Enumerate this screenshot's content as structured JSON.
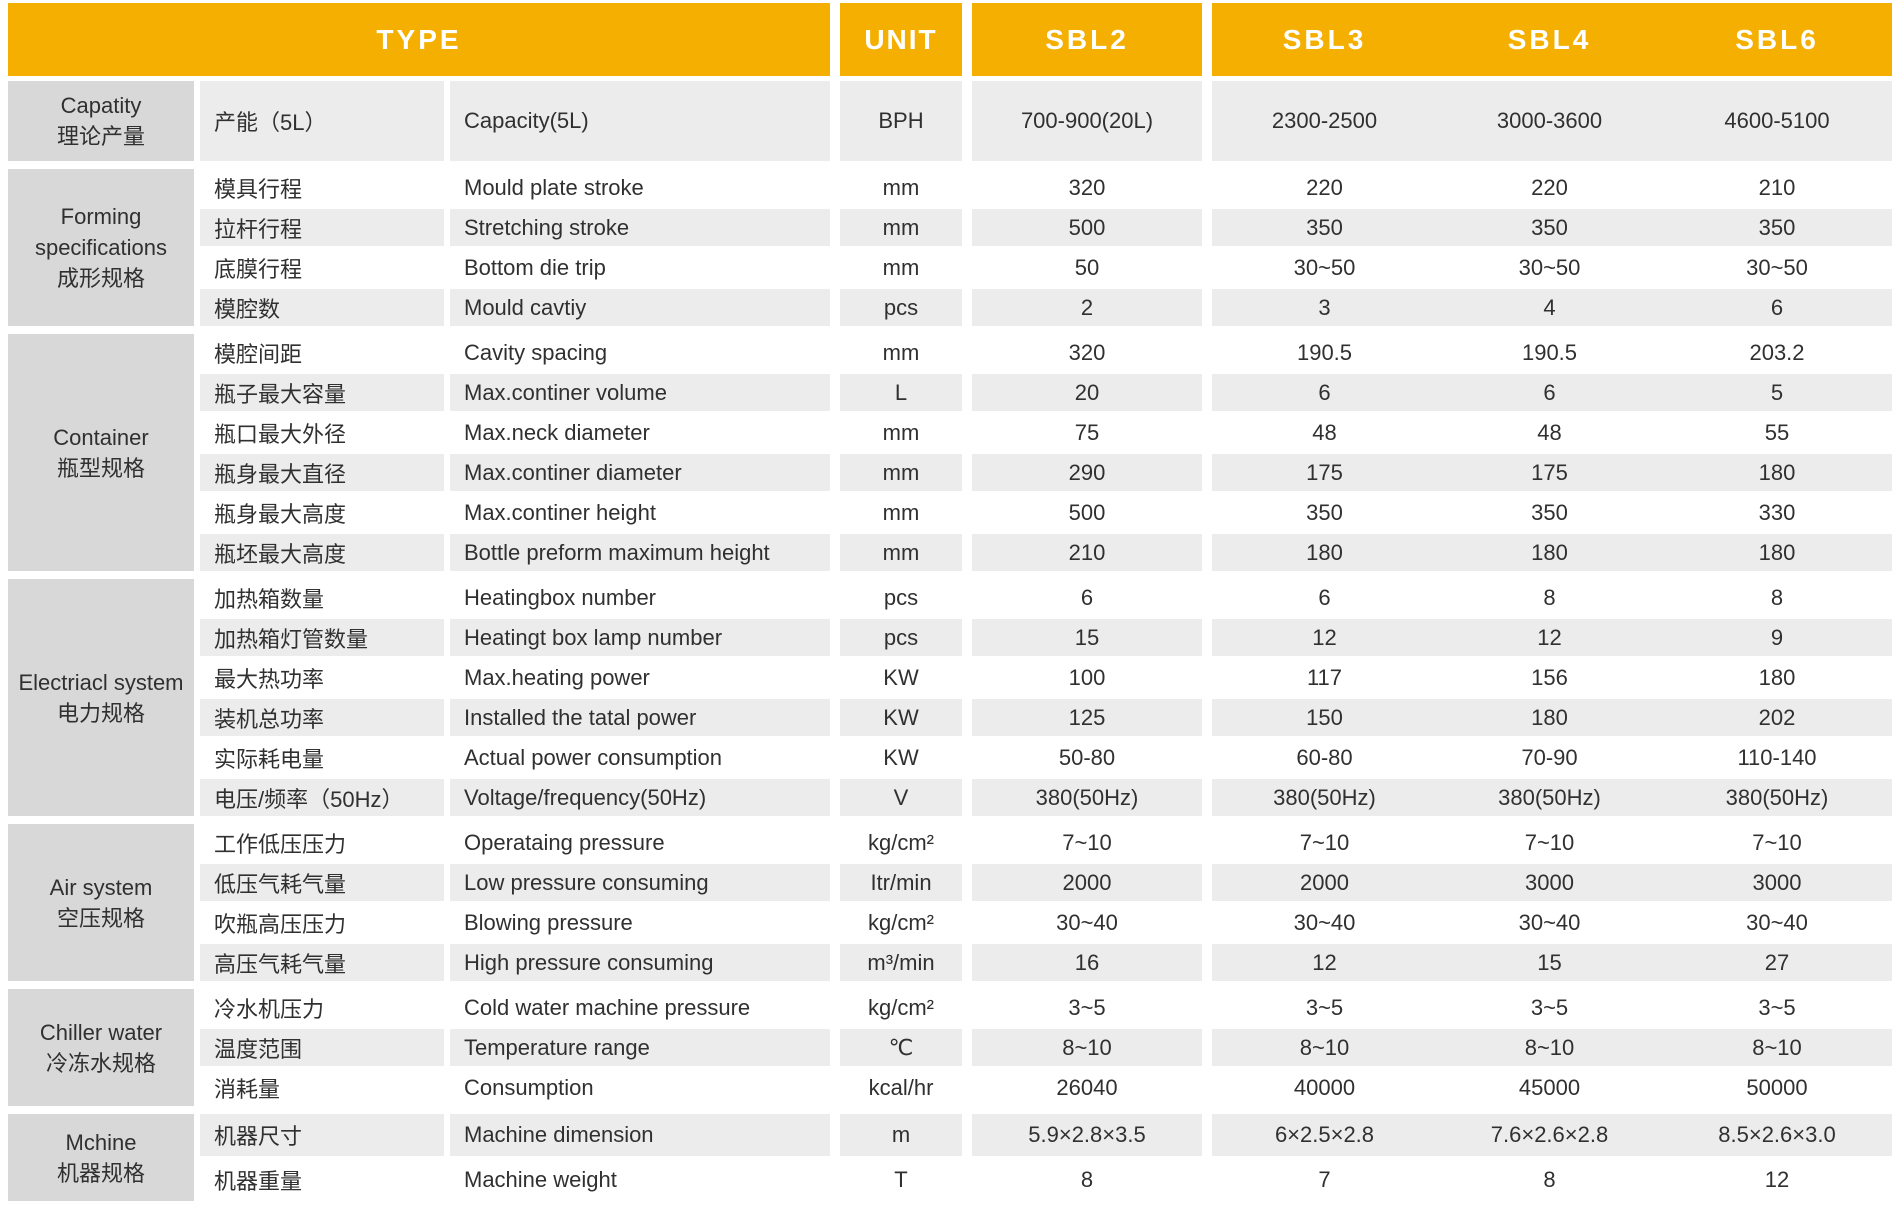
{
  "header": {
    "type_label": "TYPE",
    "unit_label": "UNIT",
    "models": [
      "SBL2",
      "SBL3",
      "SBL4",
      "SBL6"
    ]
  },
  "colors": {
    "header_bg": "#F5AF00",
    "header_text": "#FFFFFF",
    "group_bg": "#D8D8D8",
    "row_shade_bg": "#ECECEC",
    "row_bg": "#FFFFFF",
    "text": "#303030"
  },
  "sections": [
    {
      "id": "capacity",
      "group_en": "Capatity",
      "group_zh": "理论产量",
      "rows": [
        {
          "zh": "产能（5L）",
          "en": "Capacity(5L)",
          "unit": "BPH",
          "values": [
            "700-900(20L)",
            "2300-2500",
            "3000-3600",
            "4600-5100"
          ]
        }
      ]
    },
    {
      "id": "forming",
      "group_en": "Forming specifications",
      "group_zh": "成形规格",
      "rows": [
        {
          "zh": "模具行程",
          "en": "Mould plate stroke",
          "unit": "mm",
          "values": [
            "320",
            "220",
            "220",
            "210"
          ]
        },
        {
          "zh": "拉杆行程",
          "en": "Stretching stroke",
          "unit": "mm",
          "values": [
            "500",
            "350",
            "350",
            "350"
          ]
        },
        {
          "zh": "底膜行程",
          "en": "Bottom die trip",
          "unit": "mm",
          "values": [
            "50",
            "30~50",
            "30~50",
            "30~50"
          ]
        },
        {
          "zh": "模腔数",
          "en": "Mould cavtiy",
          "unit": "pcs",
          "values": [
            "2",
            "3",
            "4",
            "6"
          ]
        }
      ]
    },
    {
      "id": "container",
      "group_en": "Container",
      "group_zh": "瓶型规格",
      "rows": [
        {
          "zh": "模腔间距",
          "en": "Cavity spacing",
          "unit": "mm",
          "values": [
            "320",
            "190.5",
            "190.5",
            "203.2"
          ]
        },
        {
          "zh": "瓶子最大容量",
          "en": "Max.continer volume",
          "unit": "L",
          "values": [
            "20",
            "6",
            "6",
            "5"
          ]
        },
        {
          "zh": "瓶口最大外径",
          "en": "Max.neck diameter",
          "unit": "mm",
          "values": [
            "75",
            "48",
            "48",
            "55"
          ]
        },
        {
          "zh": "瓶身最大直径",
          "en": "Max.continer diameter",
          "unit": "mm",
          "values": [
            "290",
            "175",
            "175",
            "180"
          ]
        },
        {
          "zh": "瓶身最大高度",
          "en": "Max.continer height",
          "unit": "mm",
          "values": [
            "500",
            "350",
            "350",
            "330"
          ]
        },
        {
          "zh": "瓶坯最大高度",
          "en": "Bottle preform maximum height",
          "unit": "mm",
          "values": [
            "210",
            "180",
            "180",
            "180"
          ]
        }
      ]
    },
    {
      "id": "electrical",
      "group_en": "Electriacl system",
      "group_zh": "电力规格",
      "rows": [
        {
          "zh": "加热箱数量",
          "en": "Heatingbox number",
          "unit": "pcs",
          "values": [
            "6",
            "6",
            "8",
            "8"
          ]
        },
        {
          "zh": "加热箱灯管数量",
          "en": "Heatingt box lamp number",
          "unit": "pcs",
          "values": [
            "15",
            "12",
            "12",
            "9"
          ]
        },
        {
          "zh": "最大热功率",
          "en": "Max.heating power",
          "unit": "KW",
          "values": [
            "100",
            "117",
            "156",
            "180"
          ]
        },
        {
          "zh": "装机总功率",
          "en": "Installed the tatal power",
          "unit": "KW",
          "values": [
            "125",
            "150",
            "180",
            "202"
          ]
        },
        {
          "zh": "实际耗电量",
          "en": "Actual power consumption",
          "unit": "KW",
          "values": [
            "50-80",
            "60-80",
            "70-90",
            "110-140"
          ]
        },
        {
          "zh": "电压/频率（50Hz）",
          "en": "Voltage/frequency(50Hz)",
          "unit": "V",
          "values": [
            "380(50Hz)",
            "380(50Hz)",
            "380(50Hz)",
            "380(50Hz)"
          ]
        }
      ]
    },
    {
      "id": "air",
      "group_en": "Air system",
      "group_zh": "空压规格",
      "rows": [
        {
          "zh": "工作低压压力",
          "en": "Operataing pressure",
          "unit": "kg/cm²",
          "values": [
            "7~10",
            "7~10",
            "7~10",
            "7~10"
          ]
        },
        {
          "zh": "低压气耗气量",
          "en": "Low pressure consuming",
          "unit": "Itr/min",
          "values": [
            "2000",
            "2000",
            "3000",
            "3000"
          ]
        },
        {
          "zh": "吹瓶高压压力",
          "en": "Blowing pressure",
          "unit": "kg/cm²",
          "values": [
            "30~40",
            "30~40",
            "30~40",
            "30~40"
          ]
        },
        {
          "zh": "高压气耗气量",
          "en": "High pressure consuming",
          "unit": "m³/min",
          "values": [
            "16",
            "12",
            "15",
            "27"
          ]
        }
      ]
    },
    {
      "id": "chiller",
      "group_en": "Chiller water",
      "group_zh": "冷冻水规格",
      "rows": [
        {
          "zh": "冷水机压力",
          "en": "Cold water machine pressure",
          "unit": "kg/cm²",
          "values": [
            "3~5",
            "3~5",
            "3~5",
            "3~5"
          ]
        },
        {
          "zh": "温度范围",
          "en": "Temperature range",
          "unit": "℃",
          "values": [
            "8~10",
            "8~10",
            "8~10",
            "8~10"
          ]
        },
        {
          "zh": "消耗量",
          "en": "Consumption",
          "unit": "kcal/hr",
          "values": [
            "26040",
            "40000",
            "45000",
            "50000"
          ]
        }
      ]
    },
    {
      "id": "machine",
      "group_en": "Mchine",
      "group_zh": "机器规格",
      "rows": [
        {
          "zh": "机器尺寸",
          "en": "Machine dimension",
          "unit": "m",
          "values": [
            "5.9×2.8×3.5",
            "6×2.5×2.8",
            "7.6×2.6×2.8",
            "8.5×2.6×3.0"
          ]
        },
        {
          "zh": "机器重量",
          "en": "Machine weight",
          "unit": "T",
          "values": [
            "8",
            "7",
            "8",
            "12"
          ]
        }
      ]
    }
  ]
}
